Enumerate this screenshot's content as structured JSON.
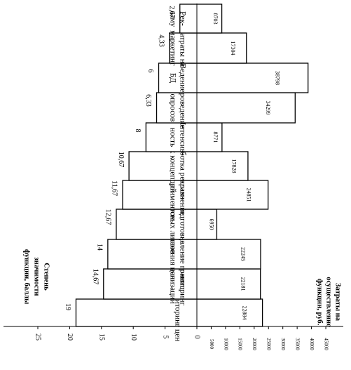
{
  "chart_data": {
    "type": "bar",
    "orientation": "horizontal-bidirectional",
    "left_axis": {
      "label": [
        "Степень",
        "значимости",
        "функции, баллы"
      ],
      "ticks": [
        "25",
        "20",
        "15",
        "10",
        "5",
        "0"
      ],
      "range": [
        0,
        25
      ]
    },
    "right_axis": {
      "label": [
        "Затраты на",
        "осуществление",
        "функции, руб."
      ],
      "ticks": [
        "5000",
        "10000",
        "15000",
        "20000",
        "25000",
        "30000",
        "35000",
        "40000",
        "45000"
      ],
      "range": [
        0,
        45000
      ]
    },
    "categories": [
      {
        "label": [
          "Мониторинг цен"
        ],
        "importance": 19,
        "importance_label": "19",
        "cost": 22884,
        "cost_label": "22884"
      },
      {
        "label": [
          "Мониторинг",
          "реализации"
        ],
        "importance": 14.67,
        "importance_label": "14,67",
        "cost": 22181,
        "cost_label": "22181"
      },
      {
        "label": [
          "Определение границ",
          "изменения цен"
        ],
        "importance": 14,
        "importance_label": "14",
        "cost": 22245,
        "cost_label": "22245"
      },
      {
        "label": [
          "Подготовка",
          "опросных листов"
        ],
        "importance": 12.67,
        "importance_label": "12,67",
        "cost": 6950,
        "cost_label": "6950"
      },
      {
        "label": [
          "Управление",
          "ассортиментом"
        ],
        "importance": 11.67,
        "importance_label": "11,67",
        "cost": 24851,
        "cost_label": "24851"
      },
      {
        "label": [
          "Разработка реклам-",
          "ных концепций"
        ],
        "importance": 10.67,
        "importance_label": "10,67",
        "cost": 17828,
        "cost_label": "17828"
      },
      {
        "label": [
          "Интенсив-",
          "ность"
        ],
        "importance": 8,
        "importance_label": "8",
        "cost": 8771,
        "cost_label": "8771"
      },
      {
        "label": [
          "Проведение",
          "опросов"
        ],
        "importance": 6.33,
        "importance_label": "6,33",
        "cost": 34299,
        "cost_label": "34299"
      },
      {
        "label": [
          "Ведение",
          "БД"
        ],
        "importance": 6,
        "importance_label": "6",
        "cost": 38798,
        "cost_label": "38798"
      },
      {
        "label": [
          "Затраты на",
          "маркетинг"
        ],
        "importance": 4.33,
        "importance_label": "4,33",
        "cost": 17304,
        "cost_label": "17304"
      },
      {
        "label": [
          "Рек-",
          "ламу"
        ],
        "importance": 2.67,
        "importance_label": "2,67",
        "cost": 8703,
        "cost_label": "8703"
      }
    ]
  }
}
